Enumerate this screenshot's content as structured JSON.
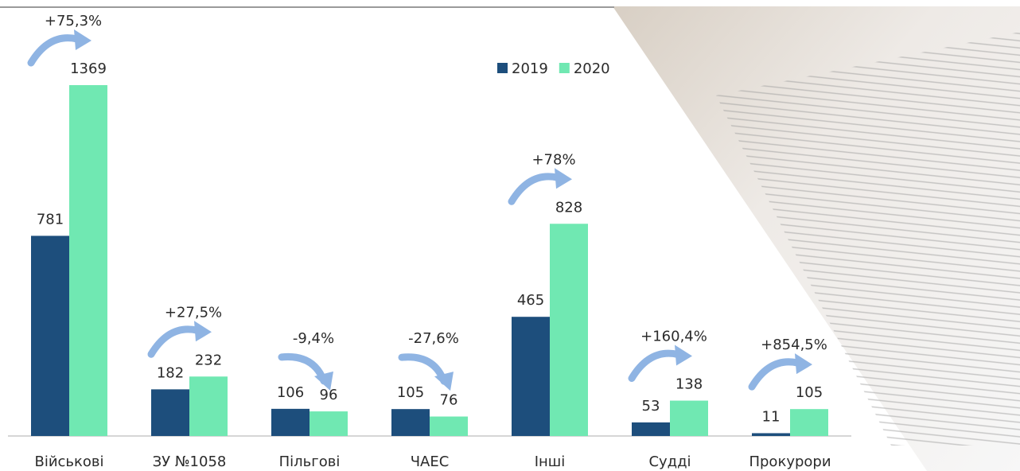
{
  "chart_data": {
    "type": "bar",
    "categories": [
      "Військові",
      "ЗУ №1058",
      "Пільгові",
      "ЧАЕС",
      "Інші",
      "Судді",
      "Прокурори"
    ],
    "series": [
      {
        "name": "2019",
        "color": "#1d4e7c",
        "values": [
          781,
          182,
          106,
          105,
          465,
          53,
          11
        ]
      },
      {
        "name": "2020",
        "color": "#70e8b2",
        "values": [
          1369,
          232,
          96,
          76,
          828,
          138,
          105
        ]
      }
    ],
    "annotations": [
      "+75,3%",
      "+27,5%",
      "-9,4%",
      "-27,6%",
      "+78%",
      "+160,4%",
      "+854,5%"
    ],
    "legend": "top-right"
  }
}
